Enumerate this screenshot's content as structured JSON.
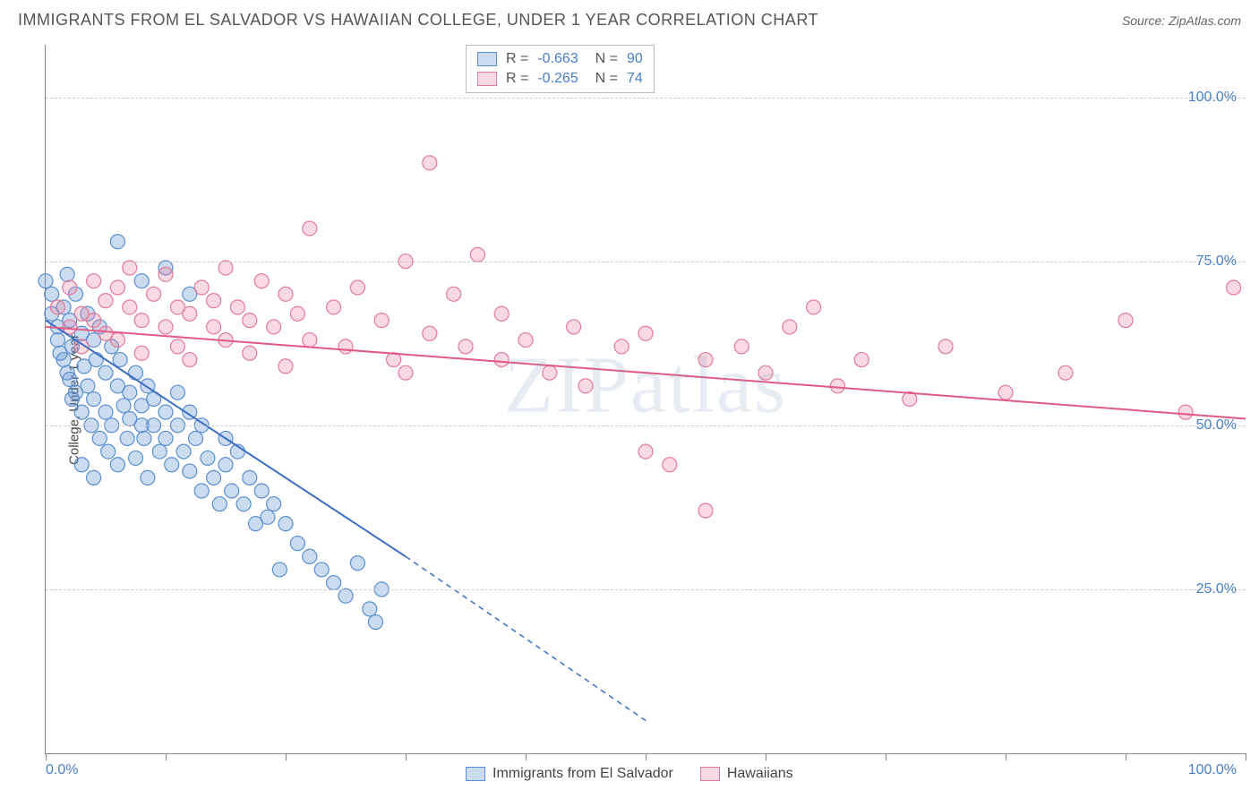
{
  "title": "IMMIGRANTS FROM EL SALVADOR VS HAWAIIAN COLLEGE, UNDER 1 YEAR CORRELATION CHART",
  "source": "Source: ZipAtlas.com",
  "watermark": "ZIPatlas",
  "chart": {
    "type": "scatter",
    "ylabel": "College, Under 1 year",
    "xlim": [
      0,
      100
    ],
    "ylim": [
      0,
      108
    ],
    "xticks": [
      0,
      10,
      20,
      30,
      40,
      50,
      60,
      70,
      80,
      90,
      100
    ],
    "yticks": [
      25,
      50,
      75,
      100
    ],
    "ytick_labels": [
      "25.0%",
      "50.0%",
      "75.0%",
      "100.0%"
    ],
    "xtick_label_left": "0.0%",
    "xtick_label_right": "100.0%",
    "grid_color": "#cccccc",
    "axis_color": "#888888",
    "background_color": "#ffffff",
    "label_color": "#4a7fc9",
    "marker_radius": 8,
    "marker_stroke_width": 1.2,
    "line_width": 2
  },
  "series": [
    {
      "name": "Immigrants from El Salvador",
      "fill": "rgba(107,154,214,0.35)",
      "stroke": "#5b8ed0",
      "line_color": "#3a6fc4",
      "R": "-0.663",
      "N": "90",
      "regression": {
        "x1": 0,
        "y1": 66,
        "x2": 30,
        "y2": 30,
        "dash_to_x": 50,
        "dash_to_y": 5
      },
      "points": [
        [
          0,
          72
        ],
        [
          0.5,
          70
        ],
        [
          0.5,
          67
        ],
        [
          1,
          65
        ],
        [
          1,
          63
        ],
        [
          1.2,
          61
        ],
        [
          1.5,
          68
        ],
        [
          1.5,
          60
        ],
        [
          1.8,
          58
        ],
        [
          2,
          66
        ],
        [
          2,
          57
        ],
        [
          2.2,
          62
        ],
        [
          2.5,
          55
        ],
        [
          2.5,
          70
        ],
        [
          3,
          64
        ],
        [
          3,
          52
        ],
        [
          3.2,
          59
        ],
        [
          3.5,
          67
        ],
        [
          3.5,
          56
        ],
        [
          3.8,
          50
        ],
        [
          4,
          63
        ],
        [
          4,
          54
        ],
        [
          4.2,
          60
        ],
        [
          4.5,
          65
        ],
        [
          4.5,
          48
        ],
        [
          5,
          58
        ],
        [
          5,
          52
        ],
        [
          5.2,
          46
        ],
        [
          5.5,
          62
        ],
        [
          5.5,
          50
        ],
        [
          6,
          56
        ],
        [
          6,
          44
        ],
        [
          6.2,
          60
        ],
        [
          6.5,
          53
        ],
        [
          6.8,
          48
        ],
        [
          7,
          55
        ],
        [
          7,
          51
        ],
        [
          7.5,
          58
        ],
        [
          7.5,
          45
        ],
        [
          8,
          50
        ],
        [
          8,
          53
        ],
        [
          8.2,
          48
        ],
        [
          8.5,
          56
        ],
        [
          8.5,
          42
        ],
        [
          9,
          50
        ],
        [
          9,
          54
        ],
        [
          9.5,
          46
        ],
        [
          10,
          52
        ],
        [
          10,
          48
        ],
        [
          10.5,
          44
        ],
        [
          11,
          50
        ],
        [
          11,
          55
        ],
        [
          11.5,
          46
        ],
        [
          12,
          52
        ],
        [
          12,
          43
        ],
        [
          12.5,
          48
        ],
        [
          13,
          50
        ],
        [
          13,
          40
        ],
        [
          13.5,
          45
        ],
        [
          14,
          42
        ],
        [
          14.5,
          38
        ],
        [
          15,
          48
        ],
        [
          15,
          44
        ],
        [
          15.5,
          40
        ],
        [
          16,
          46
        ],
        [
          16.5,
          38
        ],
        [
          17,
          42
        ],
        [
          17.5,
          35
        ],
        [
          18,
          40
        ],
        [
          18.5,
          36
        ],
        [
          19,
          38
        ],
        [
          19.5,
          28
        ],
        [
          20,
          35
        ],
        [
          21,
          32
        ],
        [
          22,
          30
        ],
        [
          23,
          28
        ],
        [
          24,
          26
        ],
        [
          25,
          24
        ],
        [
          26,
          29
        ],
        [
          27,
          22
        ],
        [
          27.5,
          20
        ],
        [
          28,
          25
        ],
        [
          6,
          78
        ],
        [
          8,
          72
        ],
        [
          10,
          74
        ],
        [
          12,
          70
        ],
        [
          3,
          44
        ],
        [
          4,
          42
        ],
        [
          1.8,
          73
        ],
        [
          2.2,
          54
        ]
      ]
    },
    {
      "name": "Hawaiians",
      "fill": "rgba(235,130,160,0.3)",
      "stroke": "#e47a9a",
      "line_color": "#e15a85",
      "R": "-0.265",
      "N": "74",
      "regression": {
        "x1": 0,
        "y1": 65,
        "x2": 100,
        "y2": 51
      },
      "points": [
        [
          1,
          68
        ],
        [
          2,
          65
        ],
        [
          2,
          71
        ],
        [
          3,
          67
        ],
        [
          3,
          62
        ],
        [
          4,
          66
        ],
        [
          4,
          72
        ],
        [
          5,
          64
        ],
        [
          5,
          69
        ],
        [
          6,
          71
        ],
        [
          6,
          63
        ],
        [
          7,
          68
        ],
        [
          7,
          74
        ],
        [
          8,
          66
        ],
        [
          8,
          61
        ],
        [
          9,
          70
        ],
        [
          10,
          65
        ],
        [
          10,
          73
        ],
        [
          11,
          68
        ],
        [
          11,
          62
        ],
        [
          12,
          67
        ],
        [
          12,
          60
        ],
        [
          13,
          71
        ],
        [
          14,
          65
        ],
        [
          14,
          69
        ],
        [
          15,
          63
        ],
        [
          15,
          74
        ],
        [
          16,
          68
        ],
        [
          17,
          66
        ],
        [
          17,
          61
        ],
        [
          18,
          72
        ],
        [
          19,
          65
        ],
        [
          20,
          70
        ],
        [
          20,
          59
        ],
        [
          21,
          67
        ],
        [
          22,
          63
        ],
        [
          22,
          80
        ],
        [
          24,
          68
        ],
        [
          25,
          62
        ],
        [
          26,
          71
        ],
        [
          28,
          66
        ],
        [
          29,
          60
        ],
        [
          30,
          75
        ],
        [
          30,
          58
        ],
        [
          32,
          90
        ],
        [
          32,
          64
        ],
        [
          34,
          70
        ],
        [
          35,
          62
        ],
        [
          36,
          76
        ],
        [
          38,
          60
        ],
        [
          38,
          67
        ],
        [
          40,
          63
        ],
        [
          42,
          58
        ],
        [
          44,
          65
        ],
        [
          45,
          56
        ],
        [
          48,
          62
        ],
        [
          50,
          46
        ],
        [
          50,
          64
        ],
        [
          52,
          44
        ],
        [
          55,
          60
        ],
        [
          55,
          37
        ],
        [
          58,
          62
        ],
        [
          60,
          58
        ],
        [
          62,
          65
        ],
        [
          64,
          68
        ],
        [
          66,
          56
        ],
        [
          68,
          60
        ],
        [
          72,
          54
        ],
        [
          75,
          62
        ],
        [
          80,
          55
        ],
        [
          85,
          58
        ],
        [
          90,
          66
        ],
        [
          95,
          52
        ],
        [
          99,
          71
        ]
      ]
    }
  ],
  "bottom_legend": [
    {
      "label": "Immigrants from El Salvador",
      "fill": "rgba(107,154,214,0.35)",
      "stroke": "#5b8ed0"
    },
    {
      "label": "Hawaiians",
      "fill": "rgba(235,130,160,0.3)",
      "stroke": "#e47a9a"
    }
  ]
}
